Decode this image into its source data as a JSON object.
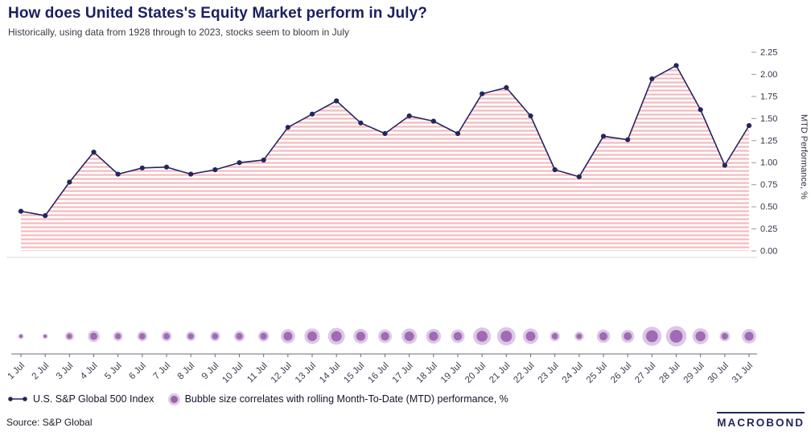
{
  "header": {
    "title": "How does United States's Equity Market perform in July?",
    "subtitle": "Historically, using data from 1928 through to 2023, stocks seem to bloom in July"
  },
  "chart_data": {
    "type": "line",
    "title": "How does United States's Equity Market perform in July?",
    "subtitle": "Historically, using data from 1928 through to 2023, stocks seem to bloom in July",
    "xlabel": "",
    "ylabel": "MTD Performance, %",
    "ylim": [
      0,
      2.25
    ],
    "grid": false,
    "legend_position": "bottom-left",
    "area_style": "pink-horizontal-stripes",
    "y_ticks": [
      0.0,
      0.25,
      0.5,
      0.75,
      1.0,
      1.25,
      1.5,
      1.75,
      2.0,
      2.25
    ],
    "y_tick_labels": [
      "0.00",
      "0.25",
      "0.50",
      "0.75",
      "1.00",
      "1.25",
      "1.50",
      "1.75",
      "2.00",
      "2.25"
    ],
    "categories": [
      "1 Jul",
      "2 Jul",
      "3 Jul",
      "4 Jul",
      "5 Jul",
      "6 Jul",
      "7 Jul",
      "8 Jul",
      "9 Jul",
      "10 Jul",
      "11 Jul",
      "12 Jul",
      "13 Jul",
      "14 Jul",
      "15 Jul",
      "16 Jul",
      "17 Jul",
      "18 Jul",
      "19 Jul",
      "20 Jul",
      "21 Jul",
      "22 Jul",
      "23 Jul",
      "24 Jul",
      "25 Jul",
      "26 Jul",
      "27 Jul",
      "28 Jul",
      "29 Jul",
      "30 Jul",
      "31 Jul"
    ],
    "series": [
      {
        "name": "U.S. S&P Global 500 Index",
        "values": [
          0.45,
          0.4,
          0.78,
          1.12,
          0.87,
          0.94,
          0.95,
          0.87,
          0.92,
          1.0,
          1.03,
          1.4,
          1.55,
          1.7,
          1.45,
          1.33,
          1.53,
          1.47,
          1.33,
          1.78,
          1.85,
          1.53,
          0.92,
          0.84,
          1.3,
          1.26,
          1.95,
          2.1,
          1.6,
          0.97,
          1.42
        ]
      }
    ],
    "bubble_series": {
      "name": "Bubble size correlates with rolling Month-To-Date (MTD) performance, %",
      "values": [
        0.45,
        0.4,
        0.78,
        1.12,
        0.87,
        0.94,
        0.95,
        0.87,
        0.92,
        1.0,
        1.03,
        1.4,
        1.55,
        1.7,
        1.45,
        1.33,
        1.53,
        1.47,
        1.33,
        1.78,
        1.85,
        1.53,
        0.92,
        0.84,
        1.3,
        1.26,
        1.95,
        2.1,
        1.6,
        0.97,
        1.42
      ]
    }
  },
  "footer": {
    "source": "Source: S&P Global",
    "logo": "MACROBOND"
  },
  "colors": {
    "title": "#1b2060",
    "line": "#23265e",
    "area_stripe": "#f5b9bd",
    "bubble_outer": "#b98fce",
    "bubble_inner": "#9a63b0",
    "axis_text": "#33344a",
    "separator": "#d8d8de",
    "axis_line": "#6a6a78"
  }
}
